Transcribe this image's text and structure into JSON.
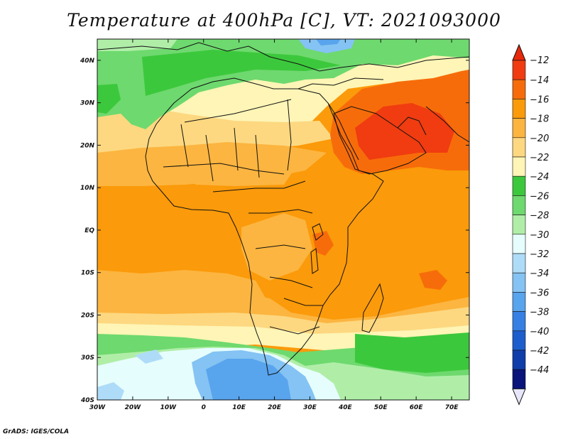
{
  "title": "Temperature at 400hPa [C], VT: 2021093000",
  "credit": "GrADS: IGES/COLA",
  "map": {
    "lon_range": [
      -30,
      75
    ],
    "lat_range": [
      -40,
      45
    ],
    "lon_ticks": [
      {
        "value": -30,
        "label": "30W"
      },
      {
        "value": -20,
        "label": "20W"
      },
      {
        "value": -10,
        "label": "10W"
      },
      {
        "value": 0,
        "label": "0"
      },
      {
        "value": 10,
        "label": "10E"
      },
      {
        "value": 20,
        "label": "20E"
      },
      {
        "value": 30,
        "label": "30E"
      },
      {
        "value": 40,
        "label": "40E"
      },
      {
        "value": 50,
        "label": "50E"
      },
      {
        "value": 60,
        "label": "60E"
      },
      {
        "value": 70,
        "label": "70E"
      }
    ],
    "lat_ticks": [
      {
        "value": 40,
        "label": "40N"
      },
      {
        "value": 30,
        "label": "30N"
      },
      {
        "value": 20,
        "label": "20N"
      },
      {
        "value": 10,
        "label": "10N"
      },
      {
        "value": 0,
        "label": "EQ"
      },
      {
        "value": -10,
        "label": "10S"
      },
      {
        "value": -20,
        "label": "20S"
      },
      {
        "value": -30,
        "label": "30S"
      },
      {
        "value": -40,
        "label": "40S"
      }
    ]
  },
  "colorbar": {
    "levels": [
      -12,
      -14,
      -16,
      -18,
      -20,
      -22,
      -24,
      -26,
      -28,
      -30,
      -32,
      -34,
      -36,
      -38,
      -40,
      -42,
      -44
    ],
    "colors": [
      "#f03c10",
      "#f76c0a",
      "#fb9a0a",
      "#fcb540",
      "#fdd880",
      "#fef5b6",
      "#3cc83c",
      "#6ed96e",
      "#b0eea8",
      "#e6fdfd",
      "#aedcf8",
      "#84c3f3",
      "#58a4ed",
      "#3680e4",
      "#1d5ecd",
      "#0f3eaa",
      "#0a147a"
    ],
    "top_color": "#e8280a",
    "bottom_color": "#e6e6fa"
  }
}
